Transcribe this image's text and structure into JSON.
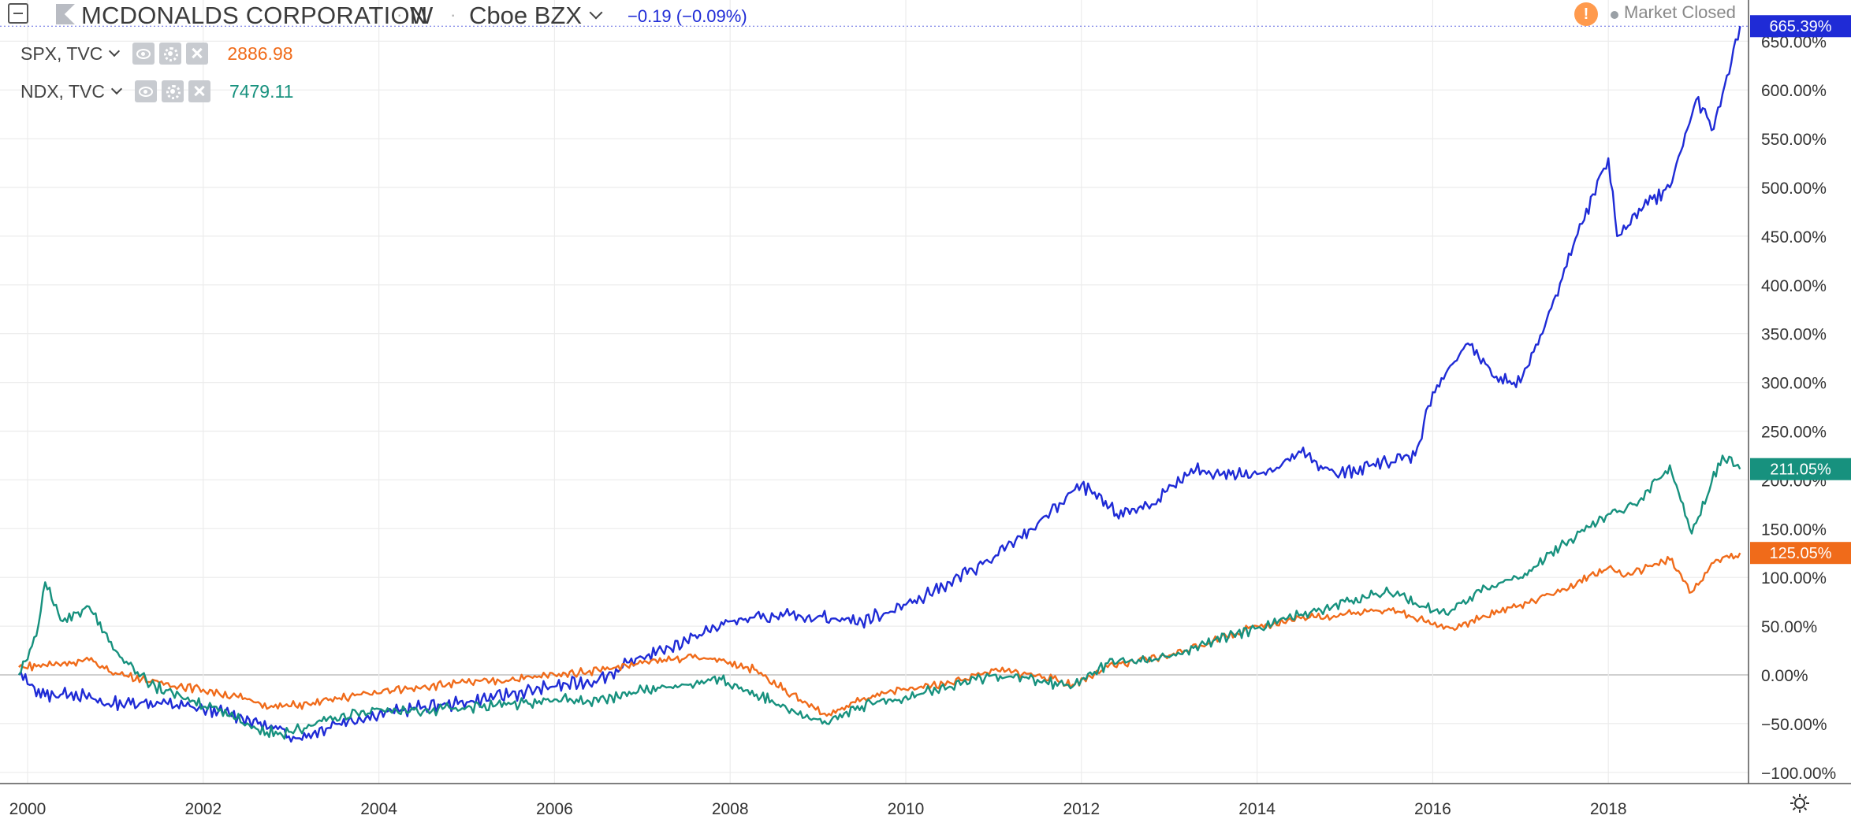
{
  "header": {
    "symbol_title": "MCDONALDS CORPORATION",
    "separator": "·",
    "interval": "W",
    "exchange": "Cboe BZX",
    "change": "−0.19 (−0.09%)",
    "market_status": "Market Closed",
    "warning_glyph": "!"
  },
  "legend": [
    {
      "name": "SPX, TVC",
      "value": "2886.98",
      "color": "#f06b1a"
    },
    {
      "name": "NDX, TVC",
      "value": "7479.11",
      "color": "#17917e"
    }
  ],
  "colors": {
    "mcd": "#1f2bd6",
    "spx": "#f06b1a",
    "ndx": "#17917e",
    "grid": "#ececec",
    "zero_line": "#b5b5b5",
    "axis_text": "#333333"
  },
  "icons": [
    "collapse-icon",
    "flag-icon",
    "chevron-down-icon",
    "warning-icon",
    "eye-icon",
    "gear-icon",
    "close-icon",
    "settings-icon"
  ],
  "chart_data": {
    "type": "line",
    "x_tick_labels": [
      "2000",
      "2002",
      "2004",
      "2006",
      "2008",
      "2010",
      "2012",
      "2014",
      "2016",
      "2018"
    ],
    "y_tick_labels": [
      "−100.00%",
      "−50.00%",
      "0.00%",
      "50.00%",
      "100.00%",
      "150.00%",
      "200.00%",
      "250.00%",
      "300.00%",
      "350.00%",
      "400.00%",
      "450.00%",
      "500.00%",
      "550.00%",
      "600.00%",
      "650.00%"
    ],
    "ylim": [
      -100,
      665
    ],
    "grid": true,
    "series": [
      {
        "name": "MCDONALDS CORPORATION",
        "last_label": "665.39%",
        "points": [
          [
            1999.9,
            0
          ],
          [
            2000.2,
            -22
          ],
          [
            2000.5,
            -18
          ],
          [
            2000.9,
            -30
          ],
          [
            2001.3,
            -28
          ],
          [
            2001.6,
            -30
          ],
          [
            2002.0,
            -35
          ],
          [
            2002.4,
            -42
          ],
          [
            2002.8,
            -55
          ],
          [
            2003.1,
            -65
          ],
          [
            2003.5,
            -50
          ],
          [
            2004.0,
            -40
          ],
          [
            2004.5,
            -33
          ],
          [
            2005.0,
            -28
          ],
          [
            2005.5,
            -20
          ],
          [
            2006.0,
            -12
          ],
          [
            2006.5,
            -5
          ],
          [
            2007.0,
            18
          ],
          [
            2007.5,
            35
          ],
          [
            2008.0,
            55
          ],
          [
            2008.5,
            60
          ],
          [
            2009.0,
            60
          ],
          [
            2009.5,
            55
          ],
          [
            2010.0,
            72
          ],
          [
            2010.5,
            95
          ],
          [
            2011.0,
            120
          ],
          [
            2011.5,
            155
          ],
          [
            2012.0,
            195
          ],
          [
            2012.4,
            165
          ],
          [
            2012.8,
            175
          ],
          [
            2013.3,
            210
          ],
          [
            2013.7,
            205
          ],
          [
            2014.2,
            210
          ],
          [
            2014.5,
            228
          ],
          [
            2014.9,
            205
          ],
          [
            2015.3,
            215
          ],
          [
            2015.8,
            225
          ],
          [
            2016.0,
            290
          ],
          [
            2016.4,
            340
          ],
          [
            2016.7,
            305
          ],
          [
            2017.0,
            300
          ],
          [
            2017.3,
            365
          ],
          [
            2017.6,
            440
          ],
          [
            2018.0,
            530
          ],
          [
            2018.1,
            450
          ],
          [
            2018.4,
            480
          ],
          [
            2018.7,
            500
          ],
          [
            2019.0,
            590
          ],
          [
            2019.2,
            560
          ],
          [
            2019.5,
            665.39
          ]
        ]
      },
      {
        "name": "SPX, TVC",
        "last_label": "125.05%",
        "points": [
          [
            1999.9,
            8
          ],
          [
            2000.2,
            10
          ],
          [
            2000.7,
            15
          ],
          [
            2001.0,
            2
          ],
          [
            2001.5,
            -8
          ],
          [
            2002.0,
            -15
          ],
          [
            2002.5,
            -25
          ],
          [
            2002.8,
            -33
          ],
          [
            2003.2,
            -30
          ],
          [
            2003.8,
            -20
          ],
          [
            2004.5,
            -12
          ],
          [
            2005.0,
            -8
          ],
          [
            2005.5,
            -5
          ],
          [
            2006.0,
            0
          ],
          [
            2006.5,
            5
          ],
          [
            2007.0,
            12
          ],
          [
            2007.5,
            18
          ],
          [
            2007.9,
            15
          ],
          [
            2008.3,
            5
          ],
          [
            2008.7,
            -20
          ],
          [
            2009.1,
            -42
          ],
          [
            2009.5,
            -25
          ],
          [
            2010.0,
            -15
          ],
          [
            2010.5,
            -8
          ],
          [
            2011.0,
            5
          ],
          [
            2011.5,
            0
          ],
          [
            2011.9,
            -10
          ],
          [
            2012.3,
            8
          ],
          [
            2013.0,
            20
          ],
          [
            2013.5,
            35
          ],
          [
            2014.0,
            50
          ],
          [
            2014.5,
            58
          ],
          [
            2015.0,
            62
          ],
          [
            2015.5,
            68
          ],
          [
            2015.9,
            55
          ],
          [
            2016.2,
            48
          ],
          [
            2016.6,
            60
          ],
          [
            2017.0,
            72
          ],
          [
            2017.5,
            88
          ],
          [
            2018.0,
            110
          ],
          [
            2018.2,
            102
          ],
          [
            2018.7,
            118
          ],
          [
            2018.95,
            85
          ],
          [
            2019.2,
            115
          ],
          [
            2019.5,
            125.05
          ]
        ]
      },
      {
        "name": "NDX, TVC",
        "last_label": "211.05%",
        "points": [
          [
            1999.9,
            0
          ],
          [
            2000.1,
            40
          ],
          [
            2000.2,
            95
          ],
          [
            2000.4,
            55
          ],
          [
            2000.7,
            70
          ],
          [
            2001.0,
            25
          ],
          [
            2001.4,
            -10
          ],
          [
            2001.8,
            -25
          ],
          [
            2002.2,
            -35
          ],
          [
            2002.6,
            -55
          ],
          [
            2002.9,
            -62
          ],
          [
            2003.3,
            -48
          ],
          [
            2004.0,
            -35
          ],
          [
            2004.5,
            -38
          ],
          [
            2005.0,
            -33
          ],
          [
            2005.5,
            -30
          ],
          [
            2006.0,
            -25
          ],
          [
            2006.5,
            -28
          ],
          [
            2007.0,
            -15
          ],
          [
            2007.5,
            -10
          ],
          [
            2007.9,
            -5
          ],
          [
            2008.3,
            -20
          ],
          [
            2008.7,
            -35
          ],
          [
            2009.1,
            -50
          ],
          [
            2009.5,
            -32
          ],
          [
            2010.0,
            -22
          ],
          [
            2010.5,
            -12
          ],
          [
            2011.0,
            0
          ],
          [
            2011.5,
            -5
          ],
          [
            2011.9,
            -12
          ],
          [
            2012.3,
            12
          ],
          [
            2013.0,
            18
          ],
          [
            2013.5,
            35
          ],
          [
            2014.0,
            48
          ],
          [
            2014.5,
            62
          ],
          [
            2015.0,
            75
          ],
          [
            2015.5,
            85
          ],
          [
            2015.9,
            70
          ],
          [
            2016.2,
            65
          ],
          [
            2016.6,
            90
          ],
          [
            2017.0,
            100
          ],
          [
            2017.5,
            135
          ],
          [
            2018.0,
            165
          ],
          [
            2018.3,
            175
          ],
          [
            2018.7,
            215
          ],
          [
            2018.95,
            145
          ],
          [
            2019.3,
            225
          ],
          [
            2019.5,
            211.05
          ]
        ]
      }
    ]
  }
}
